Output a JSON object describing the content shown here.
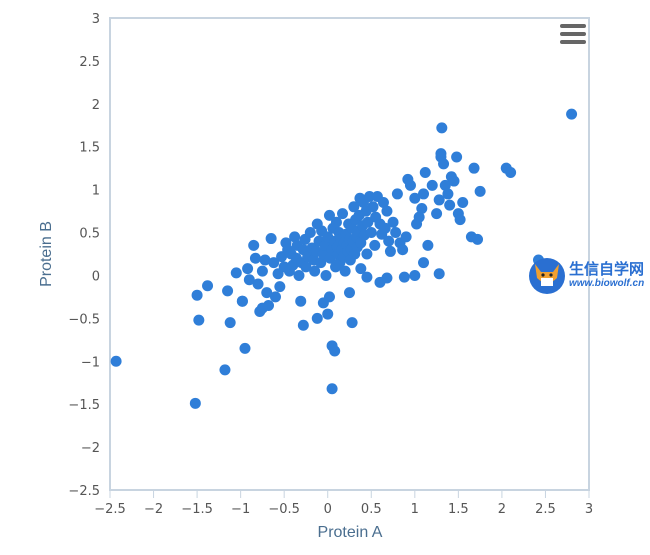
{
  "chart_data": {
    "type": "scatter",
    "xlabel": "Protein A",
    "ylabel": "Protein B",
    "xlim": [
      -2.5,
      3
    ],
    "ylim": [
      -2.5,
      3
    ],
    "x_ticks": [
      "−2.5",
      "−2",
      "−1.5",
      "−1",
      "−0.5",
      "0",
      "0.5",
      "1",
      "1.5",
      "2",
      "2.5",
      "3"
    ],
    "y_ticks": [
      "3",
      "2.5",
      "2",
      "1.5",
      "1",
      "0.5",
      "0",
      "−0.5",
      "−1",
      "−1.5",
      "−2",
      "−2.5"
    ],
    "grid": false,
    "legend": "none",
    "marker_color": "#2f7ed8",
    "points": [
      [
        -2.43,
        -1.0
      ],
      [
        -1.52,
        -1.49
      ],
      [
        -1.18,
        -1.1
      ],
      [
        -0.95,
        -0.85
      ],
      [
        -1.5,
        -0.23
      ],
      [
        -1.48,
        -0.52
      ],
      [
        -1.38,
        -0.12
      ],
      [
        -1.15,
        -0.18
      ],
      [
        -1.12,
        -0.55
      ],
      [
        -1.05,
        0.03
      ],
      [
        -0.98,
        -0.3
      ],
      [
        -0.92,
        0.08
      ],
      [
        -0.9,
        -0.05
      ],
      [
        -0.85,
        0.35
      ],
      [
        -0.83,
        0.2
      ],
      [
        -0.8,
        -0.1
      ],
      [
        -0.78,
        -0.42
      ],
      [
        -0.75,
        0.05
      ],
      [
        -0.72,
        0.18
      ],
      [
        -0.7,
        -0.2
      ],
      [
        -0.68,
        -0.35
      ],
      [
        -0.65,
        0.43
      ],
      [
        -0.62,
        0.15
      ],
      [
        -0.6,
        -0.25
      ],
      [
        -0.57,
        0.02
      ],
      [
        -0.55,
        -0.13
      ],
      [
        -0.53,
        0.22
      ],
      [
        -0.5,
        0.1
      ],
      [
        -0.48,
        0.38
      ],
      [
        -0.46,
        0.3
      ],
      [
        -0.44,
        0.05
      ],
      [
        -0.42,
        0.25
      ],
      [
        -0.4,
        0.12
      ],
      [
        -0.38,
        0.45
      ],
      [
        -0.36,
        0.2
      ],
      [
        -0.35,
        0.35
      ],
      [
        -0.33,
        0.0
      ],
      [
        -0.31,
        -0.3
      ],
      [
        -0.3,
        0.15
      ],
      [
        -0.28,
        0.3
      ],
      [
        -0.26,
        0.42
      ],
      [
        -0.25,
        0.1
      ],
      [
        -0.23,
        0.22
      ],
      [
        -0.2,
        0.5
      ],
      [
        -0.18,
        0.32
      ],
      [
        -0.16,
        0.18
      ],
      [
        -0.15,
        0.05
      ],
      [
        -0.13,
        0.28
      ],
      [
        -0.12,
        0.6
      ],
      [
        -0.1,
        0.4
      ],
      [
        -0.08,
        0.15
      ],
      [
        -0.07,
        0.52
      ],
      [
        -0.05,
        0.25
      ],
      [
        -0.03,
        0.35
      ],
      [
        -0.02,
        0.0
      ],
      [
        0.0,
        0.45
      ],
      [
        0.02,
        0.7
      ],
      [
        0.03,
        0.2
      ],
      [
        0.05,
        0.3
      ],
      [
        0.06,
        0.55
      ],
      [
        0.08,
        0.4
      ],
      [
        0.09,
        0.1
      ],
      [
        0.1,
        0.62
      ],
      [
        0.11,
        0.33
      ],
      [
        0.12,
        0.25
      ],
      [
        0.13,
        0.5
      ],
      [
        0.14,
        0.15
      ],
      [
        0.15,
        0.42
      ],
      [
        0.16,
        0.3
      ],
      [
        0.17,
        0.72
      ],
      [
        0.18,
        0.22
      ],
      [
        0.19,
        0.38
      ],
      [
        0.2,
        0.05
      ],
      [
        0.21,
        0.48
      ],
      [
        0.22,
        0.35
      ],
      [
        0.23,
        0.28
      ],
      [
        0.24,
        0.6
      ],
      [
        0.25,
        0.42
      ],
      [
        0.26,
        0.18
      ],
      [
        0.27,
        0.3
      ],
      [
        0.28,
        0.55
      ],
      [
        0.29,
        0.4
      ],
      [
        0.3,
        0.8
      ],
      [
        0.31,
        0.25
      ],
      [
        0.32,
        0.65
      ],
      [
        0.33,
        0.45
      ],
      [
        0.34,
        0.33
      ],
      [
        0.35,
        0.52
      ],
      [
        0.36,
        0.7
      ],
      [
        0.37,
        0.9
      ],
      [
        0.38,
        0.38
      ],
      [
        0.4,
        0.58
      ],
      [
        0.41,
        0.85
      ],
      [
        0.42,
        0.47
      ],
      [
        0.44,
        0.75
      ],
      [
        0.45,
        0.25
      ],
      [
        0.46,
        0.62
      ],
      [
        0.48,
        0.92
      ],
      [
        0.5,
        0.5
      ],
      [
        0.52,
        0.8
      ],
      [
        0.54,
        0.35
      ],
      [
        0.55,
        0.68
      ],
      [
        0.57,
        0.92
      ],
      [
        0.6,
        0.6
      ],
      [
        0.62,
        0.48
      ],
      [
        0.64,
        0.85
      ],
      [
        0.66,
        0.55
      ],
      [
        0.68,
        0.75
      ],
      [
        0.7,
        0.4
      ],
      [
        0.72,
        0.28
      ],
      [
        0.75,
        0.62
      ],
      [
        0.78,
        0.5
      ],
      [
        0.8,
        0.95
      ],
      [
        0.83,
        0.38
      ],
      [
        0.86,
        0.3
      ],
      [
        0.9,
        0.45
      ],
      [
        0.92,
        1.12
      ],
      [
        0.95,
        1.05
      ],
      [
        1.0,
        0.9
      ],
      [
        1.02,
        0.6
      ],
      [
        1.05,
        0.68
      ],
      [
        1.08,
        0.78
      ],
      [
        1.1,
        0.95
      ],
      [
        1.12,
        1.2
      ],
      [
        1.15,
        0.35
      ],
      [
        1.2,
        1.05
      ],
      [
        1.25,
        0.72
      ],
      [
        1.28,
        0.88
      ],
      [
        1.3,
        1.42
      ],
      [
        1.3,
        1.38
      ],
      [
        1.31,
        1.72
      ],
      [
        1.33,
        1.3
      ],
      [
        1.35,
        1.05
      ],
      [
        1.38,
        0.95
      ],
      [
        1.4,
        0.82
      ],
      [
        1.42,
        1.15
      ],
      [
        1.45,
        1.1
      ],
      [
        1.48,
        1.38
      ],
      [
        1.5,
        0.72
      ],
      [
        1.52,
        0.65
      ],
      [
        1.55,
        0.85
      ],
      [
        1.65,
        0.45
      ],
      [
        1.68,
        1.25
      ],
      [
        1.72,
        0.42
      ],
      [
        1.75,
        0.98
      ],
      [
        2.05,
        1.25
      ],
      [
        2.1,
        1.2
      ],
      [
        2.8,
        1.88
      ],
      [
        2.42,
        0.18
      ],
      [
        0.05,
        -0.82
      ],
      [
        0.08,
        -0.88
      ],
      [
        0.05,
        -1.32
      ],
      [
        -0.12,
        -0.5
      ],
      [
        0.0,
        -0.45
      ],
      [
        0.02,
        -0.25
      ],
      [
        -0.05,
        -0.32
      ],
      [
        0.25,
        -0.2
      ],
      [
        0.28,
        -0.55
      ],
      [
        0.6,
        -0.08
      ],
      [
        0.68,
        -0.03
      ],
      [
        0.88,
        -0.02
      ],
      [
        1.0,
        0.0
      ],
      [
        1.1,
        0.15
      ],
      [
        1.28,
        0.02
      ],
      [
        0.38,
        0.08
      ],
      [
        0.45,
        -0.02
      ],
      [
        -0.28,
        -0.58
      ],
      [
        -0.98,
        -0.3
      ],
      [
        -0.75,
        -0.38
      ]
    ]
  },
  "toolbar": {
    "menu_icon": "hamburger-menu-icon"
  },
  "watermark": {
    "line1": "生信自学网",
    "line2": "www.biowolf.cn"
  }
}
